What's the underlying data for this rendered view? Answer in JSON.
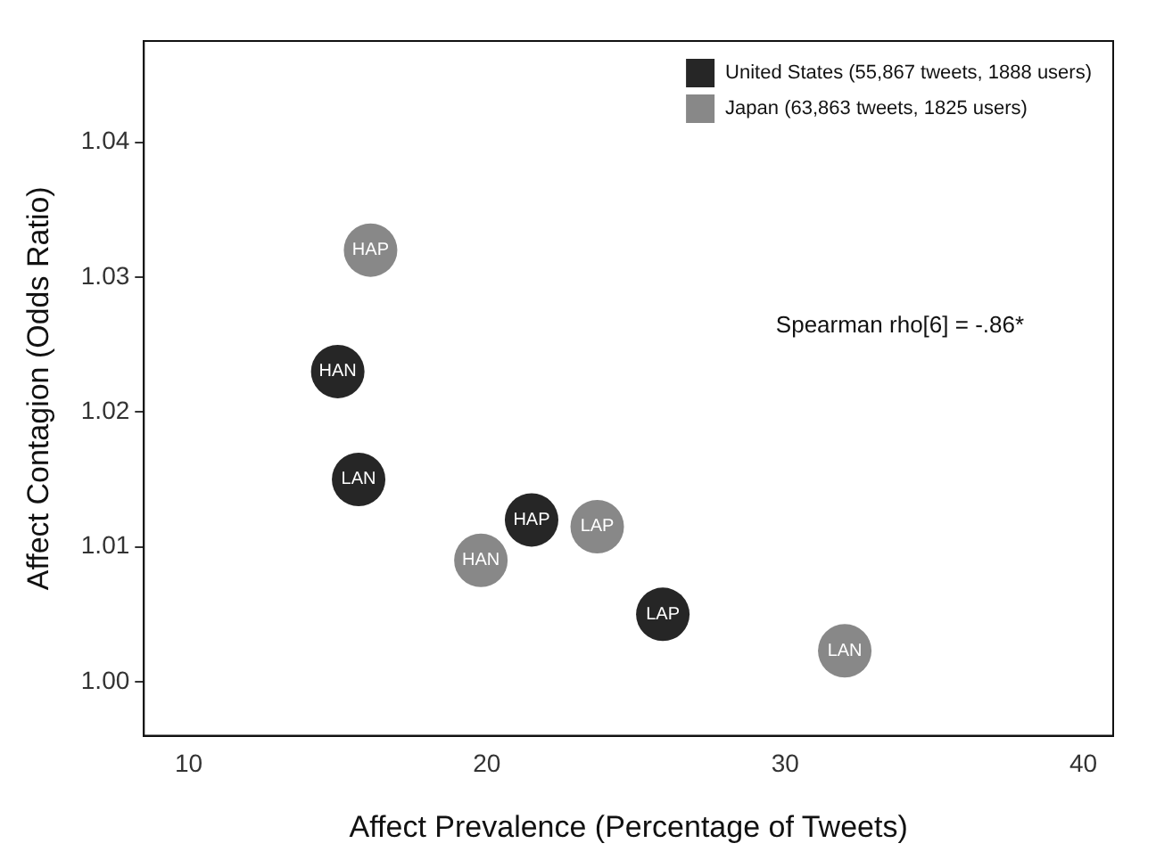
{
  "chart_data": {
    "type": "scatter",
    "xlabel": "Affect Prevalence (Percentage of Tweets)",
    "ylabel": "Affect Contagion (Odds Ratio)",
    "series": [
      {
        "name": "United States (55,867 tweets, 1888 users)",
        "color": "#262626",
        "x": [
          15.0,
          15.7,
          21.5,
          25.9
        ],
        "values": [
          1.023,
          1.015,
          1.012,
          1.005
        ],
        "value_labels": [
          "HAN",
          "LAN",
          "HAP",
          "LAP"
        ]
      },
      {
        "name": "Japan (63,863 tweets, 1825 users)",
        "color": "#888888",
        "x": [
          16.1,
          19.8,
          23.7,
          32.0
        ],
        "values": [
          1.032,
          1.009,
          1.0115,
          1.0023
        ],
        "value_labels": [
          "HAP",
          "HAN",
          "LAP",
          "LAN"
        ]
      }
    ],
    "annotations": [
      "Spearman rho[6] = -.86*"
    ],
    "xlim": [
      8.5,
      41
    ],
    "xticks": [
      10,
      20,
      30,
      40
    ],
    "ylim": [
      0.996,
      1.0475
    ],
    "yticks": [
      {
        "value": 1,
        "label": "1.00"
      },
      {
        "value": 1.01,
        "label": "1.01"
      },
      {
        "value": 1.02,
        "label": "1.02"
      },
      {
        "value": 1.03,
        "label": "1.03"
      },
      {
        "value": 1.04,
        "label": "1.04"
      }
    ],
    "grid": false,
    "legend": "top right",
    "marker": "circle"
  }
}
